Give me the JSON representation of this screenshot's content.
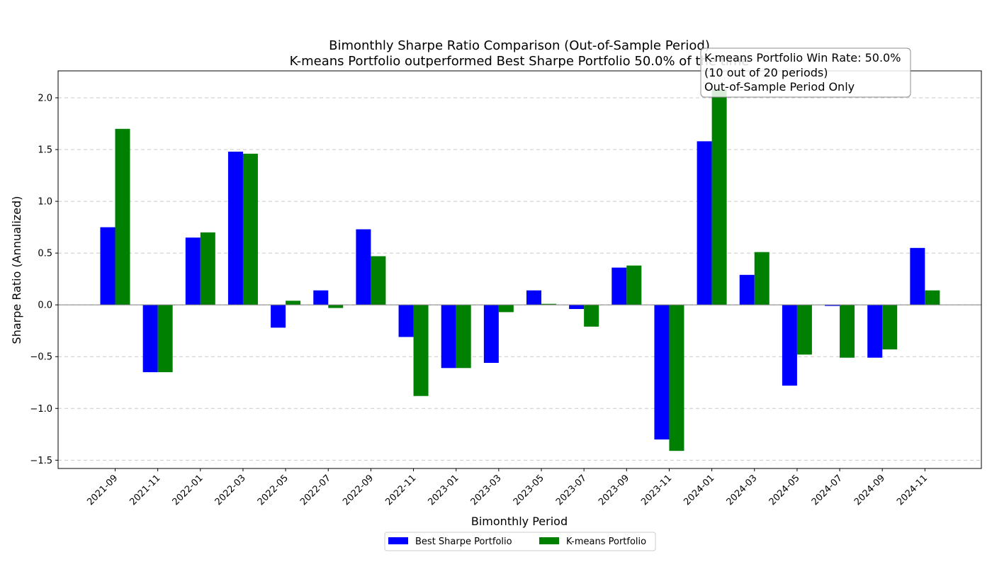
{
  "chart_data": {
    "type": "bar",
    "title": "Bimonthly Sharpe Ratio Comparison (Out-of-Sample Period)",
    "subtitle": "K-means Portfolio outperformed Best Sharpe Portfolio 50.0% of the time",
    "xlabel": "Bimonthly Period",
    "ylabel": "Sharpe Ratio (Annualized)",
    "ylim": [
      -1.58,
      2.26
    ],
    "yticks": [
      -1.5,
      -1.0,
      -0.5,
      0.0,
      0.5,
      1.0,
      1.5,
      2.0
    ],
    "ytick_labels": [
      "−1.5",
      "−1.0",
      "−0.5",
      "0.0",
      "0.5",
      "1.0",
      "1.5",
      "2.0"
    ],
    "grid": "y-dashed",
    "legend_position": "bottom-center",
    "categories": [
      "2021-09",
      "2021-11",
      "2022-01",
      "2022-03",
      "2022-05",
      "2022-07",
      "2022-09",
      "2022-11",
      "2023-01",
      "2023-03",
      "2023-05",
      "2023-07",
      "2023-09",
      "2023-11",
      "2024-01",
      "2024-03",
      "2024-05",
      "2024-07",
      "2024-09",
      "2024-11"
    ],
    "series": [
      {
        "name": "Best Sharpe Portfolio",
        "color": "#0000ff",
        "values": [
          0.75,
          -0.65,
          0.65,
          1.48,
          -0.22,
          0.14,
          0.73,
          -0.31,
          -0.61,
          -0.56,
          0.14,
          -0.04,
          0.36,
          -1.3,
          1.58,
          0.29,
          -0.78,
          -0.01,
          -0.51,
          0.55
        ]
      },
      {
        "name": "K-means Portfolio",
        "color": "#008000",
        "values": [
          1.7,
          -0.65,
          0.7,
          1.46,
          0.04,
          -0.03,
          0.47,
          -0.88,
          -0.61,
          -0.07,
          0.01,
          -0.21,
          0.38,
          -1.41,
          2.08,
          0.51,
          -0.48,
          -0.51,
          -0.43,
          0.14
        ]
      }
    ],
    "annotation": {
      "lines": [
        "K-means Portfolio Win Rate: 50.0%",
        "(10 out of 20 periods)",
        "Out-of-Sample Period Only"
      ],
      "position": "top-right"
    }
  }
}
